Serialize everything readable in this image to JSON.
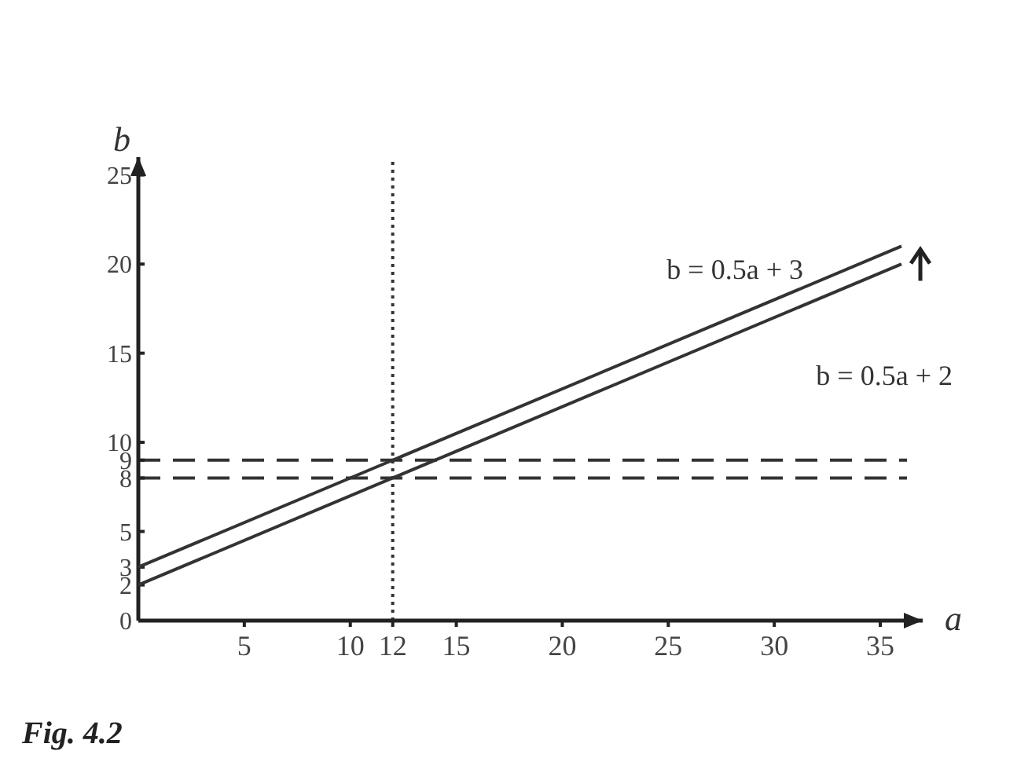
{
  "chart_data": {
    "type": "line",
    "xlabel": "a",
    "ylabel": "b",
    "xlim": [
      0,
      37
    ],
    "ylim": [
      0,
      26
    ],
    "xticks": [
      5,
      10,
      12,
      15,
      20,
      25,
      30,
      35
    ],
    "yticks": [
      0,
      2,
      3,
      5,
      8,
      9,
      10,
      15,
      20,
      25
    ],
    "series": [
      {
        "name": "b = 0.5a + 3",
        "color": "#333333",
        "x": [
          0,
          12,
          36
        ],
        "values": [
          3,
          9,
          21
        ]
      },
      {
        "name": "b = 0.5a + 2",
        "color": "#333333",
        "x": [
          0,
          12,
          36
        ],
        "values": [
          2,
          8,
          20
        ]
      }
    ],
    "line_style": "solid",
    "grid": false,
    "legend": false,
    "ref_lines": [
      {
        "axis": "y",
        "value": 9,
        "line_style": "dashed"
      },
      {
        "axis": "y",
        "value": 8,
        "line_style": "dashed"
      },
      {
        "axis": "x",
        "value": 12,
        "line_style": "dotted"
      }
    ],
    "annotations": [
      "Fig. 4.2"
    ]
  }
}
